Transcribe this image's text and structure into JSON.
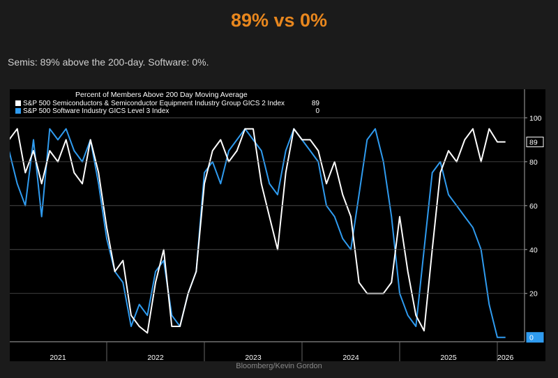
{
  "header": {
    "title": "89% vs 0%",
    "subtitle": "Semis: 89% above the 200-day. Software: 0%."
  },
  "chart_data": {
    "type": "line",
    "title": "Percent of Members Above 200 Day Moving Average",
    "source": "Bloomberg/Kevin Gordon",
    "categories": [
      null,
      null,
      null,
      null,
      null,
      null,
      "2021",
      null,
      null,
      null,
      null,
      null,
      null,
      null,
      null,
      null,
      null,
      null,
      "2022",
      null,
      null,
      null,
      null,
      null,
      null,
      null,
      null,
      null,
      null,
      null,
      "2023",
      null,
      null,
      null,
      null,
      null,
      null,
      null,
      null,
      null,
      null,
      null,
      "2024",
      null,
      null,
      null,
      null,
      null,
      null,
      null,
      null,
      null,
      null,
      null,
      "2025",
      null,
      null,
      null,
      null,
      null,
      null,
      "2026"
    ],
    "series": [
      {
        "name": "S&P 500 Semiconductors & Semiconductor Equipment Industry Group GICS 2 Index",
        "color": "#ffffff",
        "values": [
          90,
          95,
          75,
          85,
          70,
          85,
          80,
          90,
          75,
          70,
          90,
          75,
          50,
          30,
          35,
          10,
          5,
          2,
          25,
          40,
          5,
          5,
          20,
          30,
          70,
          85,
          90,
          80,
          85,
          95,
          95,
          70,
          55,
          40,
          75,
          95,
          90,
          90,
          85,
          70,
          80,
          65,
          55,
          25,
          20,
          20,
          20,
          25,
          55,
          30,
          10,
          3,
          40,
          75,
          85,
          80,
          90,
          95,
          80,
          95,
          89,
          89
        ]
      },
      {
        "name": "S&P 500 Software Industry GICS Level 3 Index",
        "color": "#2f9bef",
        "values": [
          85,
          70,
          60,
          90,
          55,
          95,
          90,
          95,
          85,
          80,
          90,
          70,
          45,
          30,
          25,
          5,
          15,
          10,
          30,
          35,
          10,
          5,
          20,
          30,
          75,
          80,
          70,
          85,
          90,
          95,
          90,
          85,
          70,
          65,
          85,
          95,
          90,
          85,
          80,
          60,
          55,
          45,
          40,
          65,
          90,
          95,
          80,
          55,
          20,
          10,
          5,
          40,
          75,
          80,
          65,
          60,
          55,
          50,
          40,
          15,
          0,
          0
        ]
      }
    ],
    "ylim": [
      -2,
      113
    ],
    "yticks": [
      20,
      40,
      60,
      80,
      100
    ],
    "grid": true
  }
}
